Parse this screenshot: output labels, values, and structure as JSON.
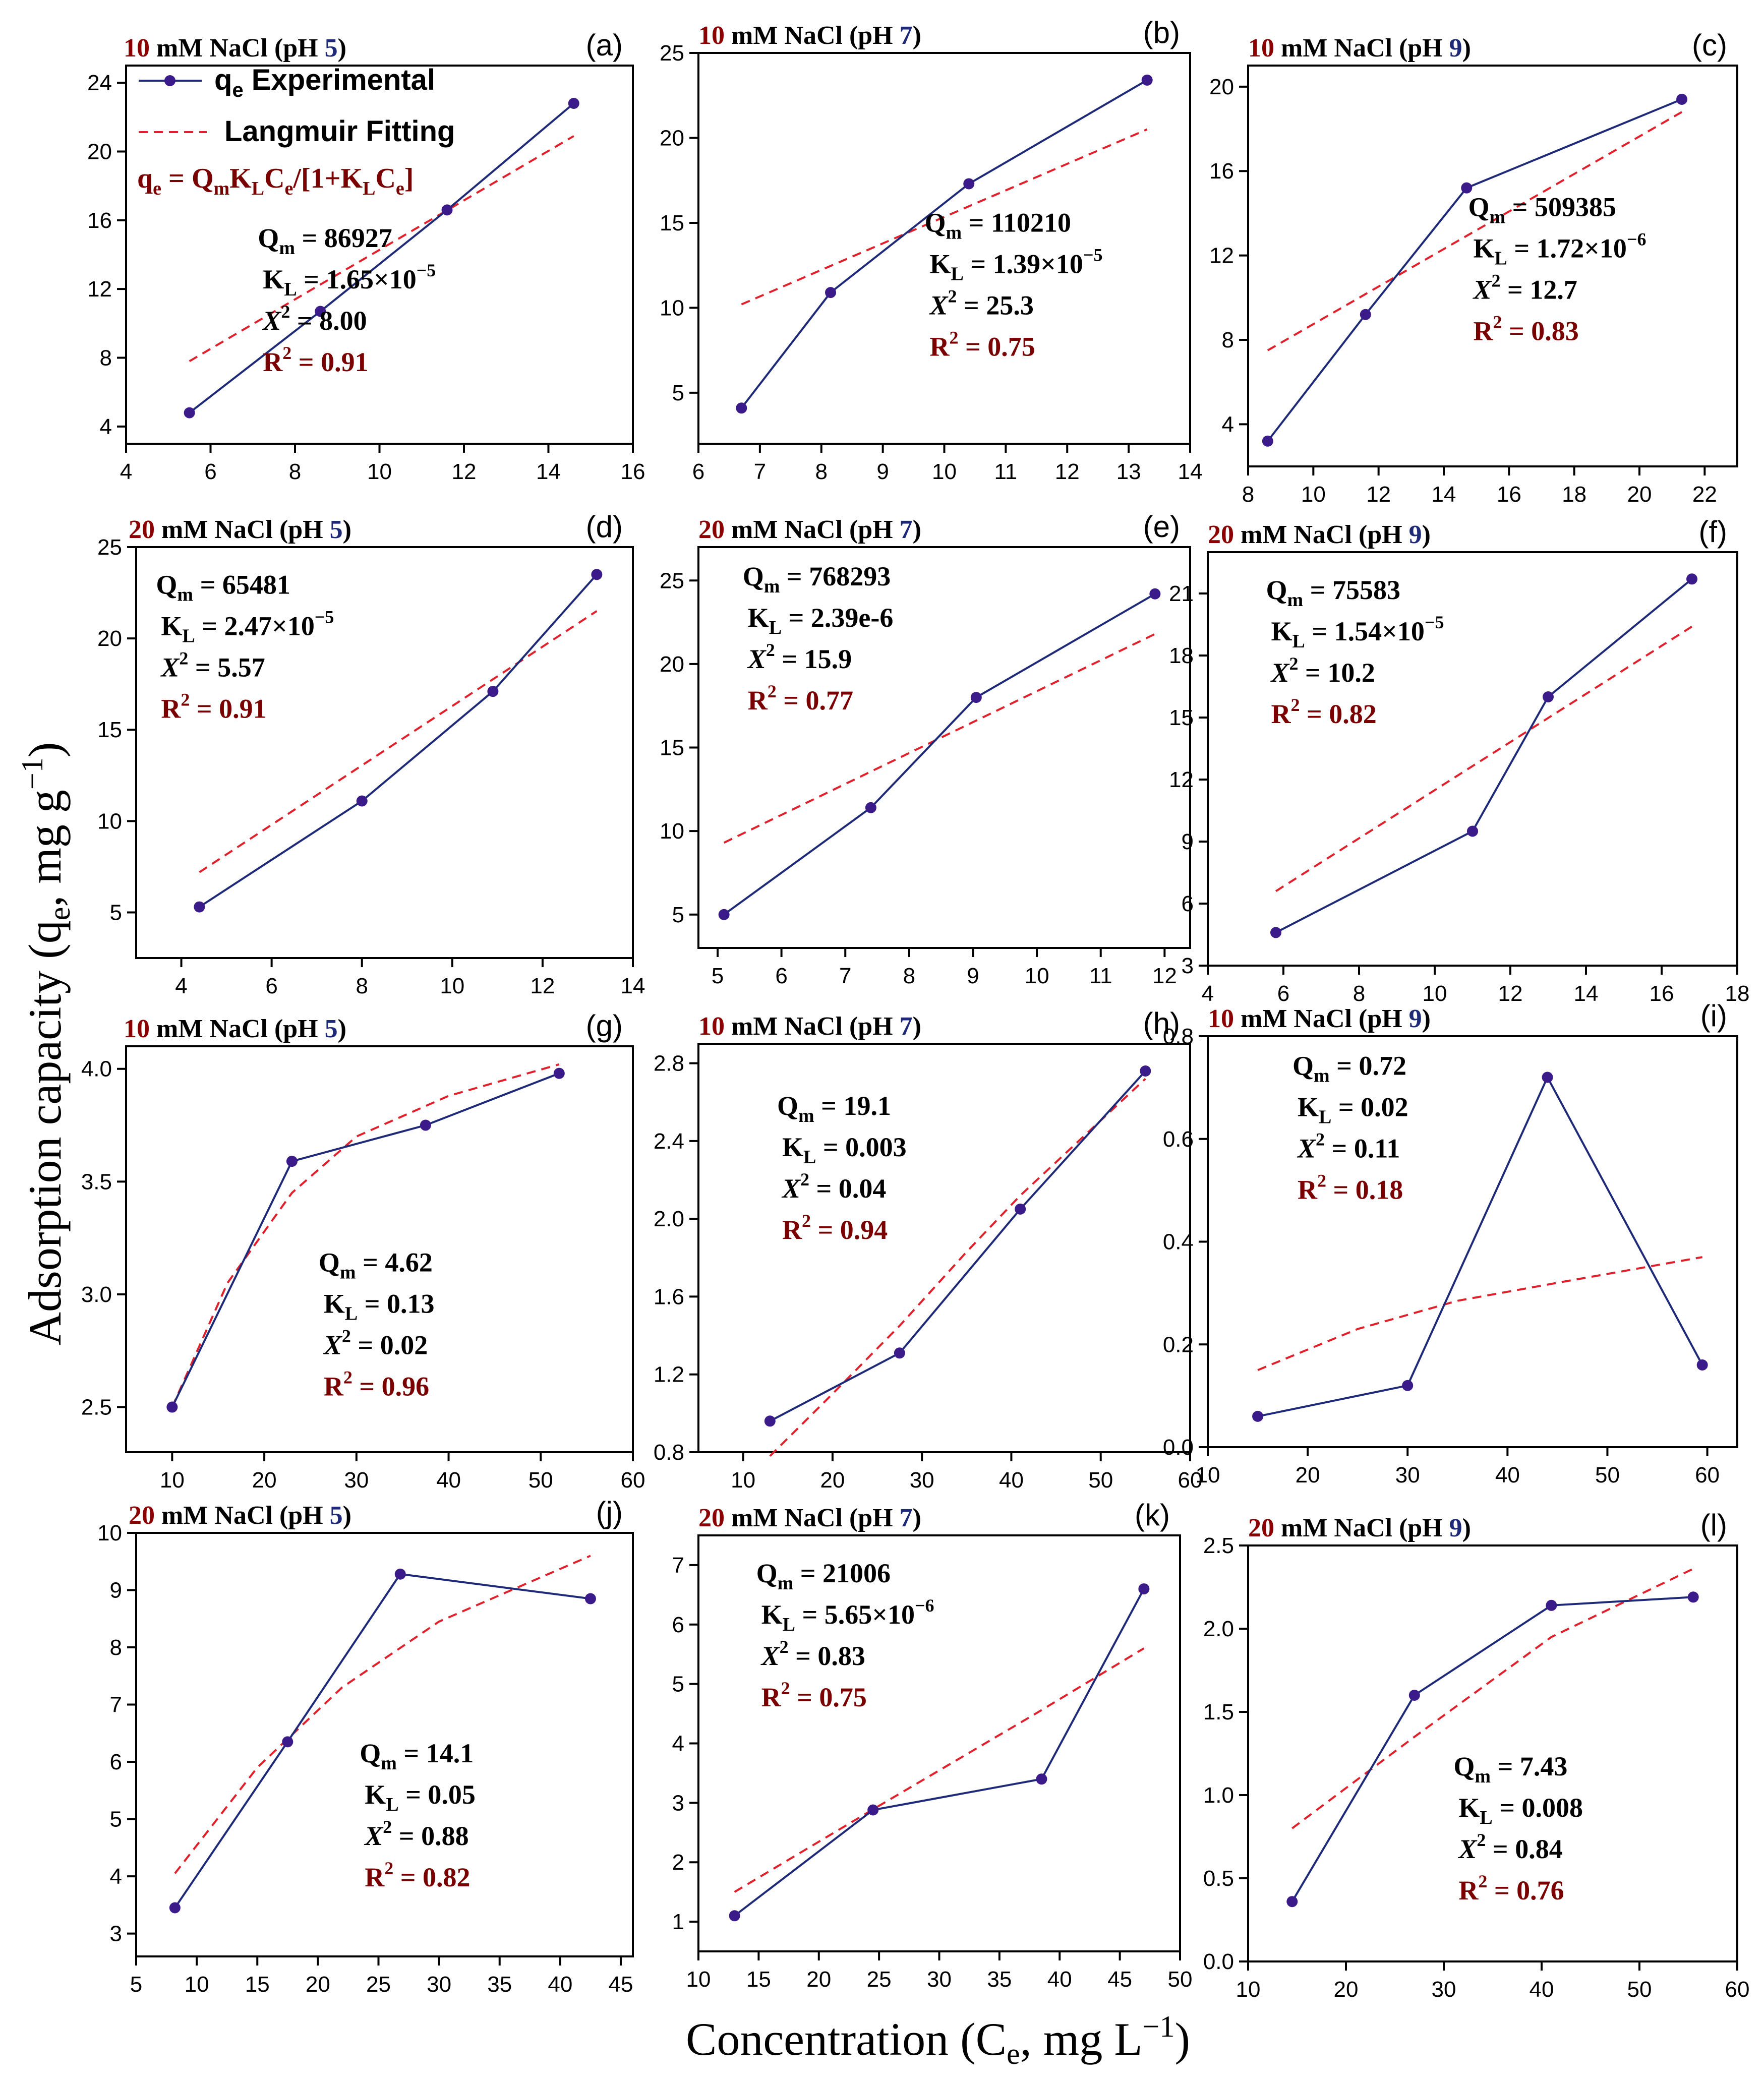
{
  "figure": {
    "ylabel": "Adsorption capacity (q",
    "ylabel_sub": "e",
    "ylabel_tail": ", mg g",
    "ylabel_sup": "−1",
    "ylabel_close": ")",
    "xlabel": "Concentration (C",
    "xlabel_sub": "e",
    "xlabel_tail": ", mg L",
    "xlabel_sup": "−1",
    "xlabel_close": ")"
  },
  "legend": {
    "exp_label": "q",
    "exp_sub": "e",
    "exp_tail": " Experimental",
    "fit_label": "Langmuir Fitting",
    "equation": "q",
    "equation_parts": [
      "q",
      "e",
      " = Q",
      "m",
      "K",
      "L",
      "C",
      "e",
      "/[1+K",
      "L",
      "C",
      "e",
      "]"
    ]
  },
  "colors": {
    "exp": "#1e2a78",
    "point": "#3b1a8a",
    "fit": "#e0202a",
    "r2": "#7a0000",
    "conc": "#8b0000",
    "ph": "#1e2a78"
  },
  "chart_data": [
    {
      "id": "a",
      "type": "line",
      "tag": "(a)",
      "conc": "10",
      "title_mid": " mM NaCl (pH ",
      "ph": "5",
      "title_end": ")",
      "xlim": [
        4,
        16
      ],
      "xticks": [
        4,
        6,
        8,
        10,
        12,
        14,
        16
      ],
      "ylim": [
        3,
        25
      ],
      "yticks": [
        4,
        8,
        12,
        16,
        20,
        24
      ],
      "x": [
        5.5,
        8.6,
        11.6,
        14.6
      ],
      "y": [
        4.8,
        10.7,
        16.6,
        22.8
      ],
      "fit": [
        [
          5.5,
          7.8
        ],
        [
          14.6,
          20.9
        ]
      ],
      "qm": "86927",
      "kl_base": "1.65×10",
      "kl_exp": "−5",
      "chi2": "8.00",
      "r2": "0.91"
    },
    {
      "id": "b",
      "type": "line",
      "tag": "(b)",
      "conc": "10",
      "title_mid": " mM NaCl (pH ",
      "ph": "7",
      "title_end": ")",
      "xlim": [
        6,
        14
      ],
      "xticks": [
        6,
        7,
        8,
        9,
        10,
        11,
        12,
        13,
        14
      ],
      "ylim": [
        2,
        25
      ],
      "yticks": [
        5,
        10,
        15,
        20,
        25
      ],
      "x": [
        6.7,
        8.15,
        10.4,
        13.3
      ],
      "y": [
        4.1,
        10.9,
        17.3,
        23.4
      ],
      "fit": [
        [
          6.7,
          10.2
        ],
        [
          13.3,
          20.5
        ]
      ],
      "qm": "110210",
      "kl_base": "1.39×10",
      "kl_exp": "−5",
      "chi2": "25.3",
      "r2": "0.75"
    },
    {
      "id": "c",
      "type": "line",
      "tag": "(c)",
      "conc": "10",
      "title_mid": " mM NaCl (pH ",
      "ph": "9",
      "title_end": ")",
      "xlim": [
        8,
        23
      ],
      "xticks": [
        8,
        10,
        12,
        14,
        16,
        18,
        20,
        22
      ],
      "ylim": [
        2,
        21
      ],
      "yticks": [
        4,
        8,
        12,
        16,
        20
      ],
      "x": [
        8.6,
        11.6,
        14.7,
        21.3
      ],
      "y": [
        3.2,
        9.2,
        15.2,
        19.4
      ],
      "fit": [
        [
          8.6,
          7.5
        ],
        [
          21.3,
          18.8
        ]
      ],
      "qm": "509385",
      "kl_base": "1.72×10",
      "kl_exp": "−6",
      "chi2": "12.7",
      "r2": "0.83"
    },
    {
      "id": "d",
      "type": "line",
      "tag": "(d)",
      "conc": "20",
      "title_mid": " mM NaCl (pH ",
      "ph": "5",
      "title_end": ")",
      "xlim": [
        3,
        14
      ],
      "xticks": [
        4,
        6,
        8,
        10,
        12,
        14
      ],
      "ylim": [
        2.5,
        25
      ],
      "yticks": [
        5,
        10,
        15,
        20,
        25
      ],
      "x": [
        4.4,
        8.0,
        10.9,
        13.2
      ],
      "y": [
        5.3,
        11.1,
        17.1,
        23.5
      ],
      "fit": [
        [
          4.4,
          7.2
        ],
        [
          13.2,
          21.5
        ]
      ],
      "qm": "65481",
      "kl_base": "2.47×10",
      "kl_exp": "−5",
      "chi2": "5.57",
      "r2": "0.91"
    },
    {
      "id": "e",
      "type": "line",
      "tag": "(e)",
      "conc": "20",
      "title_mid": " mM NaCl (pH ",
      "ph": "7",
      "title_end": ")",
      "xlim": [
        4.7,
        12.4
      ],
      "xticks": [
        5,
        6,
        7,
        8,
        9,
        10,
        11,
        12
      ],
      "ylim": [
        3,
        27
      ],
      "yticks": [
        5,
        10,
        15,
        20,
        25
      ],
      "x": [
        5.1,
        7.4,
        9.05,
        11.85
      ],
      "y": [
        5.0,
        11.4,
        18.0,
        24.2
      ],
      "fit": [
        [
          5.1,
          9.3
        ],
        [
          11.85,
          21.8
        ]
      ],
      "qm": "768293",
      "kl_base": "2.39e-6",
      "kl_exp": "",
      "chi2": "15.9",
      "r2": "0.77"
    },
    {
      "id": "f",
      "type": "line",
      "tag": "(f)",
      "conc": "20",
      "title_mid": " mM NaCl (pH ",
      "ph": "9",
      "title_end": ")",
      "xlim": [
        4,
        18
      ],
      "xticks": [
        4,
        6,
        8,
        10,
        12,
        14,
        16,
        18
      ],
      "ylim": [
        3,
        23
      ],
      "yticks": [
        3,
        6,
        9,
        12,
        15,
        18,
        21
      ],
      "x": [
        5.8,
        11.0,
        13.0,
        16.8
      ],
      "y": [
        4.6,
        9.5,
        16.0,
        21.7
      ],
      "fit": [
        [
          5.8,
          6.6
        ],
        [
          16.8,
          19.4
        ]
      ],
      "qm": "75583",
      "kl_base": "1.54×10",
      "kl_exp": "−5",
      "chi2": "10.2",
      "r2": "0.82"
    },
    {
      "id": "g",
      "type": "line",
      "tag": "(g)",
      "conc": "10",
      "title_mid": " mM NaCl (pH ",
      "ph": "5",
      "title_end": ")",
      "xlim": [
        5,
        60
      ],
      "xticks": [
        10,
        20,
        30,
        40,
        50,
        60
      ],
      "ylim": [
        2.3,
        4.1
      ],
      "yticks": [
        2.5,
        3.0,
        3.5,
        4.0
      ],
      "x": [
        10,
        23,
        37.5,
        52
      ],
      "y": [
        2.5,
        3.59,
        3.75,
        3.98
      ],
      "fit": [
        [
          10,
          2.5
        ],
        [
          16,
          3.05
        ],
        [
          23,
          3.45
        ],
        [
          30,
          3.7
        ],
        [
          40,
          3.88
        ],
        [
          52,
          4.02
        ]
      ],
      "qm": "4.62",
      "kl_base": "0.13",
      "kl_exp": "",
      "chi2": "0.02",
      "r2": "0.96"
    },
    {
      "id": "h",
      "type": "line",
      "tag": "(h)",
      "conc": "10",
      "title_mid": " mM NaCl (pH ",
      "ph": "7",
      "title_end": ")",
      "xlim": [
        5,
        60
      ],
      "xticks": [
        10,
        20,
        30,
        40,
        50,
        60
      ],
      "ylim": [
        0.8,
        2.9
      ],
      "yticks": [
        0.8,
        1.2,
        1.6,
        2.0,
        2.4,
        2.8
      ],
      "x": [
        13,
        27.5,
        41,
        55
      ],
      "y": [
        0.96,
        1.31,
        2.05,
        2.76
      ],
      "fit": [
        [
          13,
          0.78
        ],
        [
          20,
          1.1
        ],
        [
          27.5,
          1.45
        ],
        [
          35,
          1.83
        ],
        [
          41,
          2.12
        ],
        [
          55,
          2.72
        ]
      ],
      "qm": "19.1",
      "kl_base": "0.003",
      "kl_exp": "",
      "chi2": "0.04",
      "r2": "0.94"
    },
    {
      "id": "i",
      "type": "line",
      "tag": "(i)",
      "conc": "10",
      "title_mid": " mM NaCl (pH ",
      "ph": "9",
      "title_end": ")",
      "xlim": [
        10,
        63
      ],
      "xticks": [
        10,
        20,
        30,
        40,
        50,
        60
      ],
      "ylim": [
        0,
        0.8
      ],
      "yticks": [
        0.0,
        0.2,
        0.4,
        0.6,
        0.8
      ],
      "x": [
        15,
        30,
        44,
        59.5
      ],
      "y": [
        0.06,
        0.12,
        0.72,
        0.16
      ],
      "fit": [
        [
          15,
          0.15
        ],
        [
          25,
          0.23
        ],
        [
          35,
          0.285
        ],
        [
          45,
          0.32
        ],
        [
          59.5,
          0.37
        ]
      ],
      "qm": "0.72",
      "kl_base": "0.02",
      "kl_exp": "",
      "chi2": "0.11",
      "r2": "0.18"
    },
    {
      "id": "j",
      "type": "line",
      "tag": "(j)",
      "conc": "20",
      "title_mid": " mM NaCl (pH ",
      "ph": "5",
      "title_end": ")",
      "xlim": [
        5,
        46
      ],
      "xticks": [
        5,
        10,
        15,
        20,
        25,
        30,
        35,
        40,
        45
      ],
      "ylim": [
        2.6,
        10
      ],
      "yticks": [
        3,
        4,
        5,
        6,
        7,
        8,
        9,
        10
      ],
      "x": [
        8.2,
        17.5,
        26.8,
        42.5
      ],
      "y": [
        3.45,
        6.35,
        9.28,
        8.85
      ],
      "fit": [
        [
          8.2,
          4.05
        ],
        [
          15,
          5.9
        ],
        [
          22,
          7.3
        ],
        [
          30,
          8.45
        ],
        [
          42.5,
          9.6
        ]
      ],
      "qm": "14.1",
      "kl_base": "0.05",
      "kl_exp": "",
      "chi2": "0.88",
      "r2": "0.82"
    },
    {
      "id": "k",
      "type": "line",
      "tag": "(k)",
      "conc": "20",
      "title_mid": " mM NaCl (pH ",
      "ph": "7",
      "title_end": ")",
      "xlim": [
        10,
        50
      ],
      "xticks": [
        10,
        15,
        20,
        25,
        30,
        35,
        40,
        45,
        50
      ],
      "ylim": [
        0.5,
        7.5
      ],
      "yticks": [
        1,
        2,
        3,
        4,
        5,
        6,
        7
      ],
      "x": [
        13,
        24.5,
        38.5,
        47
      ],
      "y": [
        1.1,
        2.88,
        3.4,
        6.6
      ],
      "fit": [
        [
          13,
          1.5
        ],
        [
          25,
          2.95
        ],
        [
          38,
          4.5
        ],
        [
          47,
          5.6
        ]
      ],
      "qm": "21006",
      "kl_base": "5.65×10",
      "kl_exp": "−6",
      "chi2": "0.83",
      "r2": "0.75"
    },
    {
      "id": "l",
      "type": "line",
      "tag": "(l)",
      "conc": "20",
      "title_mid": " mM NaCl (pH ",
      "ph": "9",
      "title_end": ")",
      "xlim": [
        10,
        60
      ],
      "xticks": [
        10,
        20,
        30,
        40,
        50,
        60
      ],
      "ylim": [
        0,
        2.5
      ],
      "yticks": [
        0.0,
        0.5,
        1.0,
        1.5,
        2.0,
        2.5
      ],
      "x": [
        14.5,
        27,
        41,
        55.5
      ],
      "y": [
        0.36,
        1.6,
        2.14,
        2.19
      ],
      "fit": [
        [
          14.5,
          0.8
        ],
        [
          27,
          1.35
        ],
        [
          41,
          1.95
        ],
        [
          55.5,
          2.36
        ]
      ],
      "qm": "7.43",
      "kl_base": "0.008",
      "kl_exp": "",
      "chi2": "0.84",
      "r2": "0.76"
    }
  ]
}
